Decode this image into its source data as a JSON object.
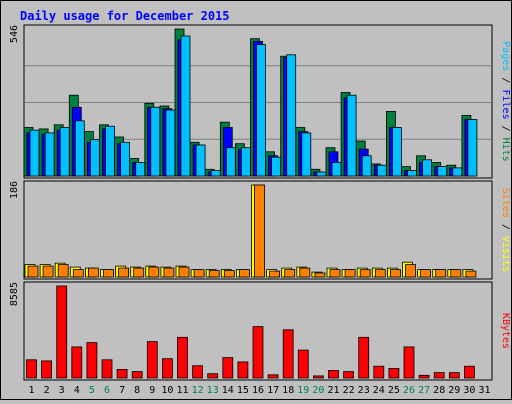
{
  "chart_data": {
    "type": "bar",
    "title": "Daily usage for December 2015",
    "x": [
      "1",
      "2",
      "3",
      "4",
      "5",
      "6",
      "7",
      "8",
      "9",
      "10",
      "11",
      "12",
      "13",
      "14",
      "15",
      "16",
      "17",
      "18",
      "19",
      "20",
      "21",
      "22",
      "23",
      "24",
      "25",
      "26",
      "27",
      "28",
      "29",
      "30",
      "31"
    ],
    "weekend_days": [
      "5",
      "6",
      "12",
      "13",
      "19",
      "20",
      "26",
      "27"
    ],
    "panels": [
      {
        "max_label": "546",
        "ymax": 546,
        "legend": [
          "Pages",
          "Files",
          "Hits"
        ],
        "series": [
          {
            "name": "Hits",
            "color": "#008040",
            "values": [
              180,
              175,
              190,
              300,
              165,
              190,
              145,
              65,
              270,
              260,
              546,
              125,
              25,
              200,
              120,
              510,
              90,
              445,
              180,
              25,
              105,
              310,
              130,
              45,
              240,
              35,
              75,
              50,
              40,
              225,
              0
            ]
          },
          {
            "name": "Files",
            "color": "#0000ff",
            "values": [
              160,
              155,
              170,
              255,
              125,
              175,
              120,
              50,
              255,
              250,
              505,
              115,
              15,
              180,
              100,
              500,
              75,
              440,
              165,
              15,
              90,
              290,
              100,
              40,
              180,
              20,
              50,
              35,
              30,
              210,
              0
            ]
          },
          {
            "name": "Pages",
            "color": "#00c0ff",
            "values": [
              170,
              160,
              180,
              205,
              135,
              185,
              125,
              50,
              255,
              245,
              520,
              115,
              20,
              105,
              105,
              488,
              70,
              450,
              160,
              15,
              50,
              300,
              75,
              40,
              180,
              20,
              60,
              35,
              30,
              210,
              0
            ]
          }
        ]
      },
      {
        "max_label": "186",
        "ymax": 186,
        "legend": [
          "Sites",
          "Visits"
        ],
        "series": [
          {
            "name": "Visits",
            "color": "#ffff00",
            "values": [
              25,
              25,
              28,
              20,
              18,
              15,
              22,
              20,
              22,
              20,
              22,
              15,
              15,
              15,
              15,
              186,
              15,
              18,
              20,
              10,
              18,
              15,
              18,
              18,
              18,
              30,
              15,
              15,
              15,
              15,
              0
            ]
          },
          {
            "name": "Sites",
            "color": "#ff8000",
            "values": [
              22,
              22,
              25,
              15,
              18,
              15,
              18,
              18,
              20,
              18,
              20,
              15,
              13,
              13,
              15,
              186,
              12,
              15,
              18,
              8,
              15,
              15,
              15,
              15,
              15,
              25,
              15,
              15,
              15,
              12,
              0
            ]
          }
        ]
      },
      {
        "max_label": "8585",
        "ymax": 8585,
        "legend": [
          "KBytes"
        ],
        "series": [
          {
            "name": "KBytes",
            "color": "#ff0000",
            "values": [
              1700,
              1600,
              8585,
              2900,
              3300,
              1700,
              800,
              600,
              3400,
              1800,
              3800,
              1150,
              400,
              1900,
              1500,
              4800,
              300,
              4500,
              2600,
              200,
              700,
              600,
              3800,
              1100,
              900,
              2900,
              250,
              500,
              500,
              1100,
              0
            ]
          }
        ]
      }
    ]
  }
}
